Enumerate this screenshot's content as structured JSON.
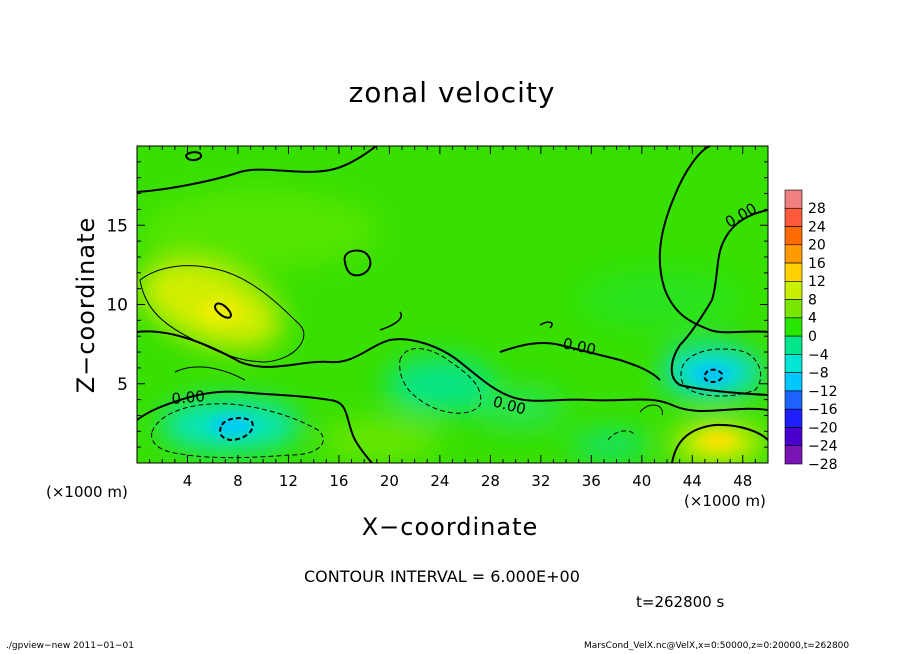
{
  "chart_data": {
    "type": "heatmap",
    "title": "zonal velocity",
    "xlabel": "X−coordinate",
    "ylabel": "Z−coordinate",
    "x_unit_left": "(×1000 m)",
    "x_unit_right": "(×1000 m)",
    "xlim": [
      0,
      50
    ],
    "ylim": [
      0,
      20
    ],
    "x_ticks": [
      4,
      8,
      12,
      16,
      20,
      24,
      28,
      32,
      36,
      40,
      44,
      48
    ],
    "x_tick_labels": [
      "4",
      "8",
      "12",
      "16",
      "20",
      "24",
      "28",
      "32",
      "36",
      "40",
      "44",
      "48"
    ],
    "y_ticks": [
      5,
      10,
      15
    ],
    "y_tick_labels": [
      "5",
      "10",
      "15"
    ],
    "contour_interval": 6.0,
    "contour_labels": [
      "0.00",
      "0.00",
      "0.00",
      "0.00"
    ],
    "colorbar": {
      "levels": [
        28,
        24,
        20,
        16,
        12,
        8,
        4,
        0,
        -4,
        -8,
        -12,
        -16,
        -20,
        -24,
        -28
      ],
      "labels": [
        "28",
        "24",
        "20",
        "16",
        "12",
        "8",
        "4",
        "0",
        "−4",
        "−8",
        "−12",
        "−16",
        "−20",
        "−24",
        "−28"
      ],
      "colors": [
        "#f08080",
        "#ff5a3c",
        "#ff6a00",
        "#ff9a00",
        "#ffd200",
        "#c8f000",
        "#7ae600",
        "#27e600",
        "#00e68c",
        "#00e6d2",
        "#00c8ff",
        "#1e64ff",
        "#1e1eff",
        "#4a00cc",
        "#7a14b4"
      ]
    },
    "features": [
      {
        "x": 7,
        "z": 9.8,
        "value": 10,
        "kind": "positive"
      },
      {
        "x": 7.5,
        "z": 2.3,
        "value": -12,
        "kind": "negative"
      },
      {
        "x": 45.5,
        "z": 5.5,
        "value": -14,
        "kind": "negative"
      },
      {
        "x": 46,
        "z": 1.4,
        "value": 9,
        "kind": "positive"
      },
      {
        "x": 23,
        "z": 4.5,
        "value": -7,
        "kind": "negative"
      },
      {
        "x": 30.5,
        "z": 3.2,
        "value": -4,
        "kind": "negative"
      },
      {
        "x": 20,
        "z": 1.5,
        "value": 3,
        "kind": "positive"
      },
      {
        "x": 12,
        "z": 14.5,
        "value": 1,
        "kind": "positive"
      }
    ]
  },
  "annotations": {
    "contour_note": "CONTOUR INTERVAL = 6.000E+00",
    "time": "t=262800 s",
    "footer_left": "./gpview−new   2011−01−01",
    "footer_right": "MarsCond_VelX.nc@VelX,x=0:50000,z=0:20000,t=262800"
  },
  "colors": {
    "background_field": "#38e000",
    "positive_highlight": "#e6f000",
    "negative_highlight": "#00e6d8"
  }
}
